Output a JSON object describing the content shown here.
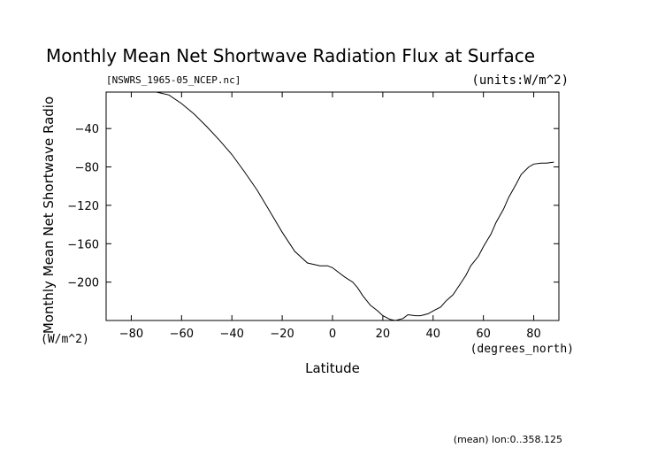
{
  "chart_data": {
    "type": "line",
    "title": "Monthly Mean Net Shortwave Radiation Flux at Surface",
    "file_label": "[NSWRS_1965-05_NCEP.nc]",
    "units_label": "(units:W/m^2)",
    "ylabel": "Monthly Mean Net Shortwave Radio",
    "ylabel_unit": "(W/m^2)",
    "xlabel": "Latitude",
    "xunit": "(degrees_north)",
    "footer": "(mean) lon:0..358.125",
    "xlim": [
      -90,
      90
    ],
    "ylim": [
      -240,
      -2
    ],
    "x_ticks": [
      -80,
      -60,
      -40,
      -20,
      0,
      20,
      40,
      60,
      80
    ],
    "y_ticks": [
      -40,
      -80,
      -120,
      -160,
      -200
    ],
    "series": [
      {
        "x": [
          -88,
          -80,
          -75,
          -70,
          -65,
          -60,
          -55,
          -50,
          -45,
          -40,
          -35,
          -30,
          -25,
          -20,
          -15,
          -10,
          -5,
          -2,
          0,
          3,
          5,
          8,
          10,
          12,
          15,
          18,
          20,
          23,
          25,
          28,
          30,
          33,
          35,
          38,
          40,
          43,
          45,
          48,
          50,
          53,
          55,
          58,
          60,
          63,
          65,
          68,
          70,
          73,
          75,
          78,
          80,
          83,
          85,
          88
        ],
        "y": [
          -2,
          -2,
          -2,
          -2,
          -5,
          -14,
          -25,
          -38,
          -52,
          -67,
          -85,
          -104,
          -126,
          -148,
          -168,
          -180,
          -183,
          -183,
          -185,
          -191,
          -195,
          -200,
          -206,
          -214,
          -224,
          -230,
          -235,
          -239,
          -240,
          -238,
          -234,
          -235,
          -235,
          -233,
          -230,
          -226,
          -220,
          -213,
          -205,
          -193,
          -183,
          -173,
          -163,
          -150,
          -138,
          -124,
          -112,
          -98,
          -88,
          -80,
          -77,
          -76,
          -76,
          -75
        ]
      }
    ]
  }
}
